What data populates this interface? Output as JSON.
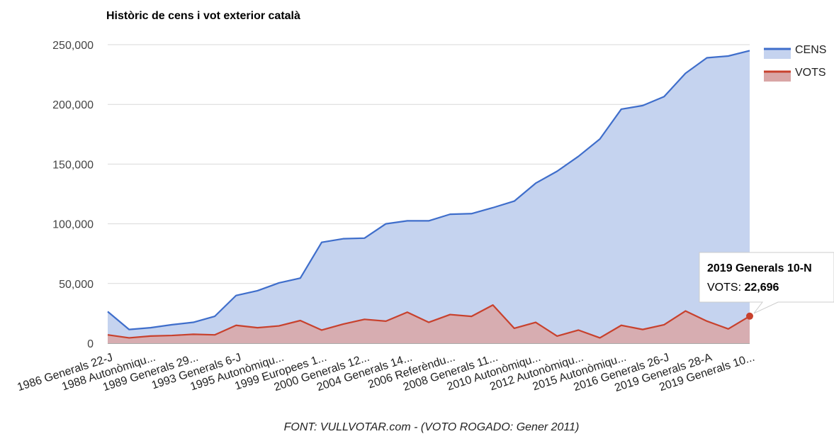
{
  "chart_data": {
    "type": "area",
    "title": "Històric de cens i vot exterior català",
    "source": "FONT: VULLVOTAR.com - (VOTO ROGADO: Gener 2011)",
    "ylim": [
      0,
      250000
    ],
    "yticks": [
      0,
      50000,
      100000,
      150000,
      200000,
      250000
    ],
    "ytick_labels": [
      "0",
      "50,000",
      "100,000",
      "150,000",
      "200,000",
      "250,000"
    ],
    "grid": true,
    "legend_position": "right",
    "x_tick_labels": [
      "1986 Generals 22-J",
      "1988 Autonòmiqu...",
      "1989 Generals 29...",
      "1993 Generals 6-J",
      "1995 Autonòmiqu...",
      "1999 Europees 1...",
      "2000 Generals 12...",
      "2004 Generals 14...",
      "2006 Referèndu...",
      "2008 Generals 11...",
      "2010 Autonòmiqu...",
      "2012 Autonòmiqu...",
      "2015 Autonòmiqu...",
      "2016 Generals 26-J",
      "2019 Generals 28-A",
      "2019 Generals 10..."
    ],
    "x_tick_indices": [
      0,
      2,
      4,
      6,
      8,
      10,
      12,
      14,
      16,
      18,
      20,
      22,
      24,
      26,
      28,
      30
    ],
    "series": [
      {
        "name": "CENS",
        "color": "#3f6ecb",
        "fill": "#c5d3ef",
        "values": [
          26500,
          11500,
          13000,
          15500,
          17500,
          22500,
          40000,
          44000,
          50500,
          54500,
          84500,
          87500,
          88000,
          100000,
          102500,
          102500,
          108000,
          108500,
          113500,
          119000,
          134000,
          144000,
          156500,
          171000,
          196000,
          199000,
          206500,
          226000,
          239000,
          240500,
          245000
        ]
      },
      {
        "name": "VOTS",
        "color": "#c8412d",
        "fill": "#d9a6a6",
        "values": [
          7000,
          4500,
          6000,
          6500,
          7500,
          7000,
          15000,
          13000,
          14500,
          19000,
          11000,
          16000,
          20000,
          18500,
          26000,
          17500,
          24000,
          22500,
          32000,
          12500,
          17500,
          6000,
          11000,
          4500,
          15000,
          11500,
          15500,
          27000,
          18500,
          12000,
          22696
        ]
      }
    ],
    "tooltip": {
      "title": "2019 Generals 10-N",
      "label": "VOTS: ",
      "value": "22,696",
      "point_index": 30
    }
  }
}
